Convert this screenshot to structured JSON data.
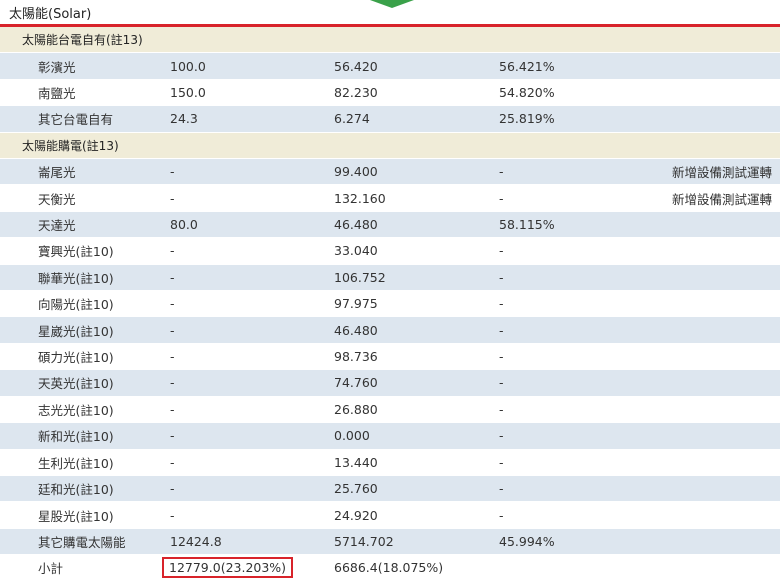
{
  "title": "太陽能(Solar)",
  "sections": [
    {
      "label": "太陽能台電自有(註13)",
      "rows": [
        {
          "name": "彰濱光",
          "capacity": "100.0",
          "generation": "56.420",
          "ratio": "56.421%",
          "note": ""
        },
        {
          "name": "南鹽光",
          "capacity": "150.0",
          "generation": "82.230",
          "ratio": "54.820%",
          "note": ""
        },
        {
          "name": "其它台電自有",
          "capacity": "24.3",
          "generation": "6.274",
          "ratio": "25.819%",
          "note": ""
        }
      ]
    },
    {
      "label": "太陽能購電(註13)",
      "rows": [
        {
          "name": "崙尾光",
          "capacity": "-",
          "generation": "99.400",
          "ratio": "-",
          "note": "新增設備測試運轉"
        },
        {
          "name": "天衡光",
          "capacity": "-",
          "generation": "132.160",
          "ratio": "-",
          "note": "新增設備測試運轉"
        },
        {
          "name": "天達光",
          "capacity": "80.0",
          "generation": "46.480",
          "ratio": "58.115%",
          "note": ""
        },
        {
          "name": "寶興光(註10)",
          "capacity": "-",
          "generation": "33.040",
          "ratio": "-",
          "note": ""
        },
        {
          "name": "聯華光(註10)",
          "capacity": "-",
          "generation": "106.752",
          "ratio": "-",
          "note": ""
        },
        {
          "name": "向陽光(註10)",
          "capacity": "-",
          "generation": "97.975",
          "ratio": "-",
          "note": ""
        },
        {
          "name": "星崴光(註10)",
          "capacity": "-",
          "generation": "46.480",
          "ratio": "-",
          "note": ""
        },
        {
          "name": "碩力光(註10)",
          "capacity": "-",
          "generation": "98.736",
          "ratio": "-",
          "note": ""
        },
        {
          "name": "天英光(註10)",
          "capacity": "-",
          "generation": "74.760",
          "ratio": "-",
          "note": ""
        },
        {
          "name": "志光光(註10)",
          "capacity": "-",
          "generation": "26.880",
          "ratio": "-",
          "note": ""
        },
        {
          "name": "新和光(註10)",
          "capacity": "-",
          "generation": "0.000",
          "ratio": "-",
          "note": ""
        },
        {
          "name": "生利光(註10)",
          "capacity": "-",
          "generation": "13.440",
          "ratio": "-",
          "note": ""
        },
        {
          "name": "廷和光(註10)",
          "capacity": "-",
          "generation": "25.760",
          "ratio": "-",
          "note": ""
        },
        {
          "name": "星股光(註10)",
          "capacity": "-",
          "generation": "24.920",
          "ratio": "-",
          "note": ""
        },
        {
          "name": "其它購電太陽能",
          "capacity": "12424.8",
          "generation": "5714.702",
          "ratio": "45.994%",
          "note": ""
        }
      ]
    }
  ],
  "subtotal": {
    "label": "小計",
    "capacity": "12779.0(23.203%)",
    "generation": "6686.4(18.075%)"
  },
  "colors": {
    "highlight": "#d8232a",
    "section_bg": "#f0ecd8",
    "row_blue": "#dde6ef",
    "arrow": "#3aa14a"
  }
}
